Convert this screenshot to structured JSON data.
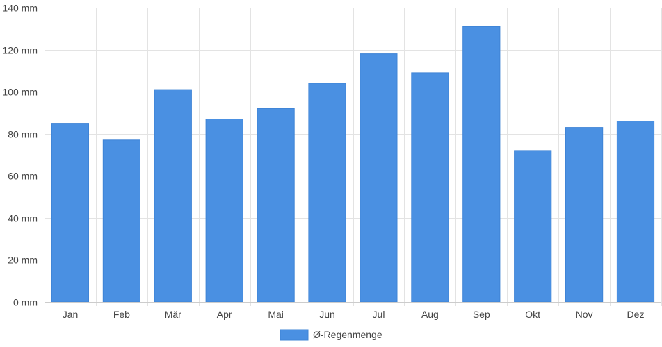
{
  "chart_data": {
    "type": "bar",
    "categories": [
      "Jan",
      "Feb",
      "Mär",
      "Apr",
      "Mai",
      "Jun",
      "Jul",
      "Aug",
      "Sep",
      "Okt",
      "Nov",
      "Dez"
    ],
    "series": [
      {
        "name": "Ø-Regenmenge",
        "color": "#4a90e2",
        "values": [
          85,
          77,
          101,
          87,
          92,
          104,
          118,
          109,
          131,
          72,
          83,
          86
        ]
      }
    ],
    "ylim": [
      0,
      140
    ],
    "yticks": [
      0,
      20,
      40,
      60,
      80,
      100,
      120,
      140
    ],
    "y_unit_suffix": " mm",
    "grid": true,
    "legend_position": "bottom-center",
    "title": "",
    "xlabel": "",
    "ylabel": ""
  }
}
